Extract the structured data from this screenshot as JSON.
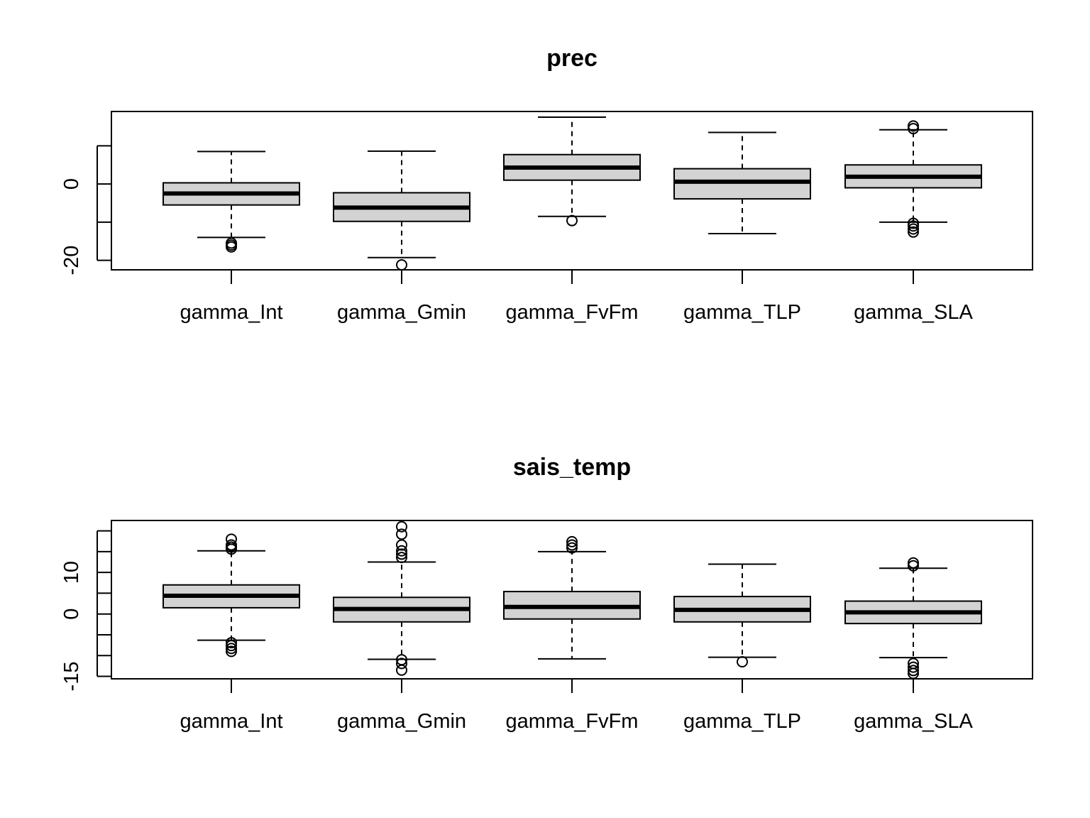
{
  "chart_data": [
    {
      "type": "boxplot",
      "title": "prec",
      "xlabel": "",
      "ylabel": "",
      "ylim": [
        -22.5,
        19
      ],
      "yticks": [
        -20,
        -10,
        0,
        10
      ],
      "ytick_labels": [
        "-20",
        "",
        "0",
        ""
      ],
      "grid": false,
      "categories": [
        "gamma_Int",
        "gamma_Gmin",
        "gamma_FvFm",
        "gamma_TLP",
        "gamma_SLA"
      ],
      "boxes": [
        {
          "name": "gamma_Int",
          "whisker_low": -14.0,
          "q1": -5.5,
          "median": -2.5,
          "q3": 0.3,
          "whisker_high": 8.5,
          "outliers": [
            -15.5,
            -16.0,
            -16.5
          ]
        },
        {
          "name": "gamma_Gmin",
          "whisker_low": -19.3,
          "q1": -9.8,
          "median": -6.2,
          "q3": -2.3,
          "whisker_high": 8.6,
          "outliers": [
            -21.2
          ]
        },
        {
          "name": "gamma_FvFm",
          "whisker_low": -8.5,
          "q1": 1.0,
          "median": 4.3,
          "q3": 7.7,
          "whisker_high": 17.5,
          "outliers": [
            -9.6
          ]
        },
        {
          "name": "gamma_TLP",
          "whisker_low": -13.0,
          "q1": -3.9,
          "median": 0.6,
          "q3": 4.0,
          "whisker_high": 13.5,
          "outliers": []
        },
        {
          "name": "gamma_SLA",
          "whisker_low": -10.0,
          "q1": -1.0,
          "median": 1.9,
          "q3": 5.0,
          "whisker_high": 14.2,
          "outliers": [
            15.2,
            14.5,
            -10.3,
            -11.0,
            -11.8,
            -12.6
          ]
        }
      ]
    },
    {
      "type": "boxplot",
      "title": "sais_temp",
      "xlabel": "",
      "ylabel": "",
      "ylim": [
        -15.6,
        22.5
      ],
      "yticks": [
        -15,
        -10,
        -5,
        0,
        5,
        10,
        15,
        20
      ],
      "ytick_labels": [
        "-15",
        "",
        "",
        "0",
        "",
        "10",
        "",
        ""
      ],
      "grid": false,
      "categories": [
        "gamma_Int",
        "gamma_Gmin",
        "gamma_FvFm",
        "gamma_TLP",
        "gamma_SLA"
      ],
      "boxes": [
        {
          "name": "gamma_Int",
          "whisker_low": -6.3,
          "q1": 1.5,
          "median": 4.4,
          "q3": 7.0,
          "whisker_high": 15.2,
          "outliers": [
            18.0,
            16.6,
            16.1,
            15.6,
            -6.9,
            -7.6,
            -8.3,
            -9.0
          ]
        },
        {
          "name": "gamma_Gmin",
          "whisker_low": -10.9,
          "q1": -1.9,
          "median": 1.2,
          "q3": 4.0,
          "whisker_high": 12.5,
          "outliers": [
            21.0,
            19.2,
            16.6,
            15.2,
            14.4,
            13.6,
            -11.0,
            -11.9,
            -13.5
          ]
        },
        {
          "name": "gamma_FvFm",
          "whisker_low": -10.8,
          "q1": -1.2,
          "median": 1.7,
          "q3": 5.4,
          "whisker_high": 15.0,
          "outliers": [
            17.4,
            16.6,
            15.9
          ]
        },
        {
          "name": "gamma_TLP",
          "whisker_low": -10.4,
          "q1": -1.9,
          "median": 1.0,
          "q3": 4.2,
          "whisker_high": 12.0,
          "outliers": [
            -11.5
          ]
        },
        {
          "name": "gamma_SLA",
          "whisker_low": -10.5,
          "q1": -2.3,
          "median": 0.4,
          "q3": 3.1,
          "whisker_high": 11.0,
          "outliers": [
            12.3,
            11.6,
            -11.9,
            -12.8,
            -13.6,
            -14.3
          ]
        }
      ]
    }
  ]
}
